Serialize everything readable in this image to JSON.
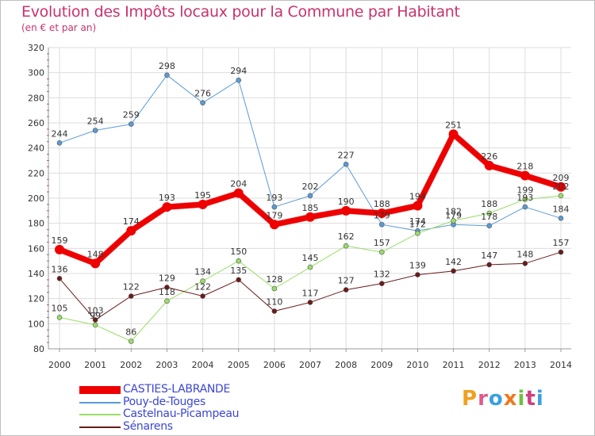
{
  "title": "Evolution des Impôts locaux pour la Commune par Habitant",
  "subtitle": "(en € et par an)",
  "logo": {
    "text": "Proxiti",
    "letters": [
      {
        "ch": "P",
        "color": "#f0a020"
      },
      {
        "ch": "r",
        "color": "#e05a8a"
      },
      {
        "ch": "o",
        "color": "#3aa0e0"
      },
      {
        "ch": "x",
        "color": "#f07820"
      },
      {
        "ch": "i",
        "color": "#70c040"
      },
      {
        "ch": "t",
        "color": "#d04080"
      },
      {
        "ch": "i",
        "color": "#3aa0e0"
      }
    ]
  },
  "chart_data": {
    "type": "line",
    "title": "Evolution des Impôts locaux pour la Commune par Habitant",
    "subtitle": "(en € et par an)",
    "xlabel": "",
    "ylabel": "",
    "categories": [
      "2000",
      "2001",
      "2002",
      "2003",
      "2004",
      "2005",
      "2006",
      "2007",
      "2008",
      "2009",
      "2010",
      "2011",
      "2012",
      "2013",
      "2014"
    ],
    "ylim": [
      80,
      320
    ],
    "yticks": [
      80,
      100,
      120,
      140,
      160,
      180,
      200,
      220,
      240,
      260,
      280,
      300,
      320
    ],
    "grid": true,
    "legend_position": "bottom-left",
    "series": [
      {
        "name": "CASTIES-LABRANDE",
        "color": "#ee0000",
        "width": 7,
        "marker": 6,
        "values": [
          159,
          148,
          174,
          193,
          195,
          204,
          179,
          185,
          190,
          188,
          194,
          251,
          226,
          218,
          209
        ],
        "labels": [
          "159",
          "148",
          "174",
          "193",
          "195",
          "204",
          "179",
          "185",
          "190",
          "188",
          "194",
          "251",
          "226",
          "218",
          "209"
        ]
      },
      {
        "name": "Pouy-de-Touges",
        "color": "#5a9bd5",
        "width": 1,
        "marker": 3,
        "values": [
          244,
          254,
          259,
          298,
          276,
          294,
          193,
          202,
          227,
          179,
          174,
          179,
          178,
          193,
          184
        ],
        "labels": [
          "244",
          "254",
          "259",
          "298",
          "276",
          "294",
          "193",
          "202",
          "227",
          "179",
          "174",
          "179",
          "178",
          "193",
          "184"
        ]
      },
      {
        "name": "Castelnau-Picampeau",
        "color": "#99dd66",
        "width": 1,
        "marker": 3,
        "values": [
          105,
          99,
          86,
          118,
          134,
          150,
          128,
          145,
          162,
          157,
          172,
          182,
          188,
          199,
          202
        ],
        "labels": [
          "105",
          "99",
          "86",
          "118",
          "134",
          "150",
          "128",
          "145",
          "162",
          "157",
          "172",
          "182",
          "188",
          "199",
          "202"
        ]
      },
      {
        "name": "Sénarens",
        "color": "#6b1a1a",
        "width": 1,
        "marker": 3,
        "values": [
          136,
          103,
          122,
          129,
          122,
          135,
          110,
          117,
          127,
          132,
          139,
          142,
          147,
          148,
          157
        ],
        "labels": [
          "136",
          "103",
          "122",
          "129",
          "122",
          "135",
          "110",
          "117",
          "127",
          "132",
          "139",
          "142",
          "147",
          "148",
          "157"
        ]
      }
    ]
  }
}
